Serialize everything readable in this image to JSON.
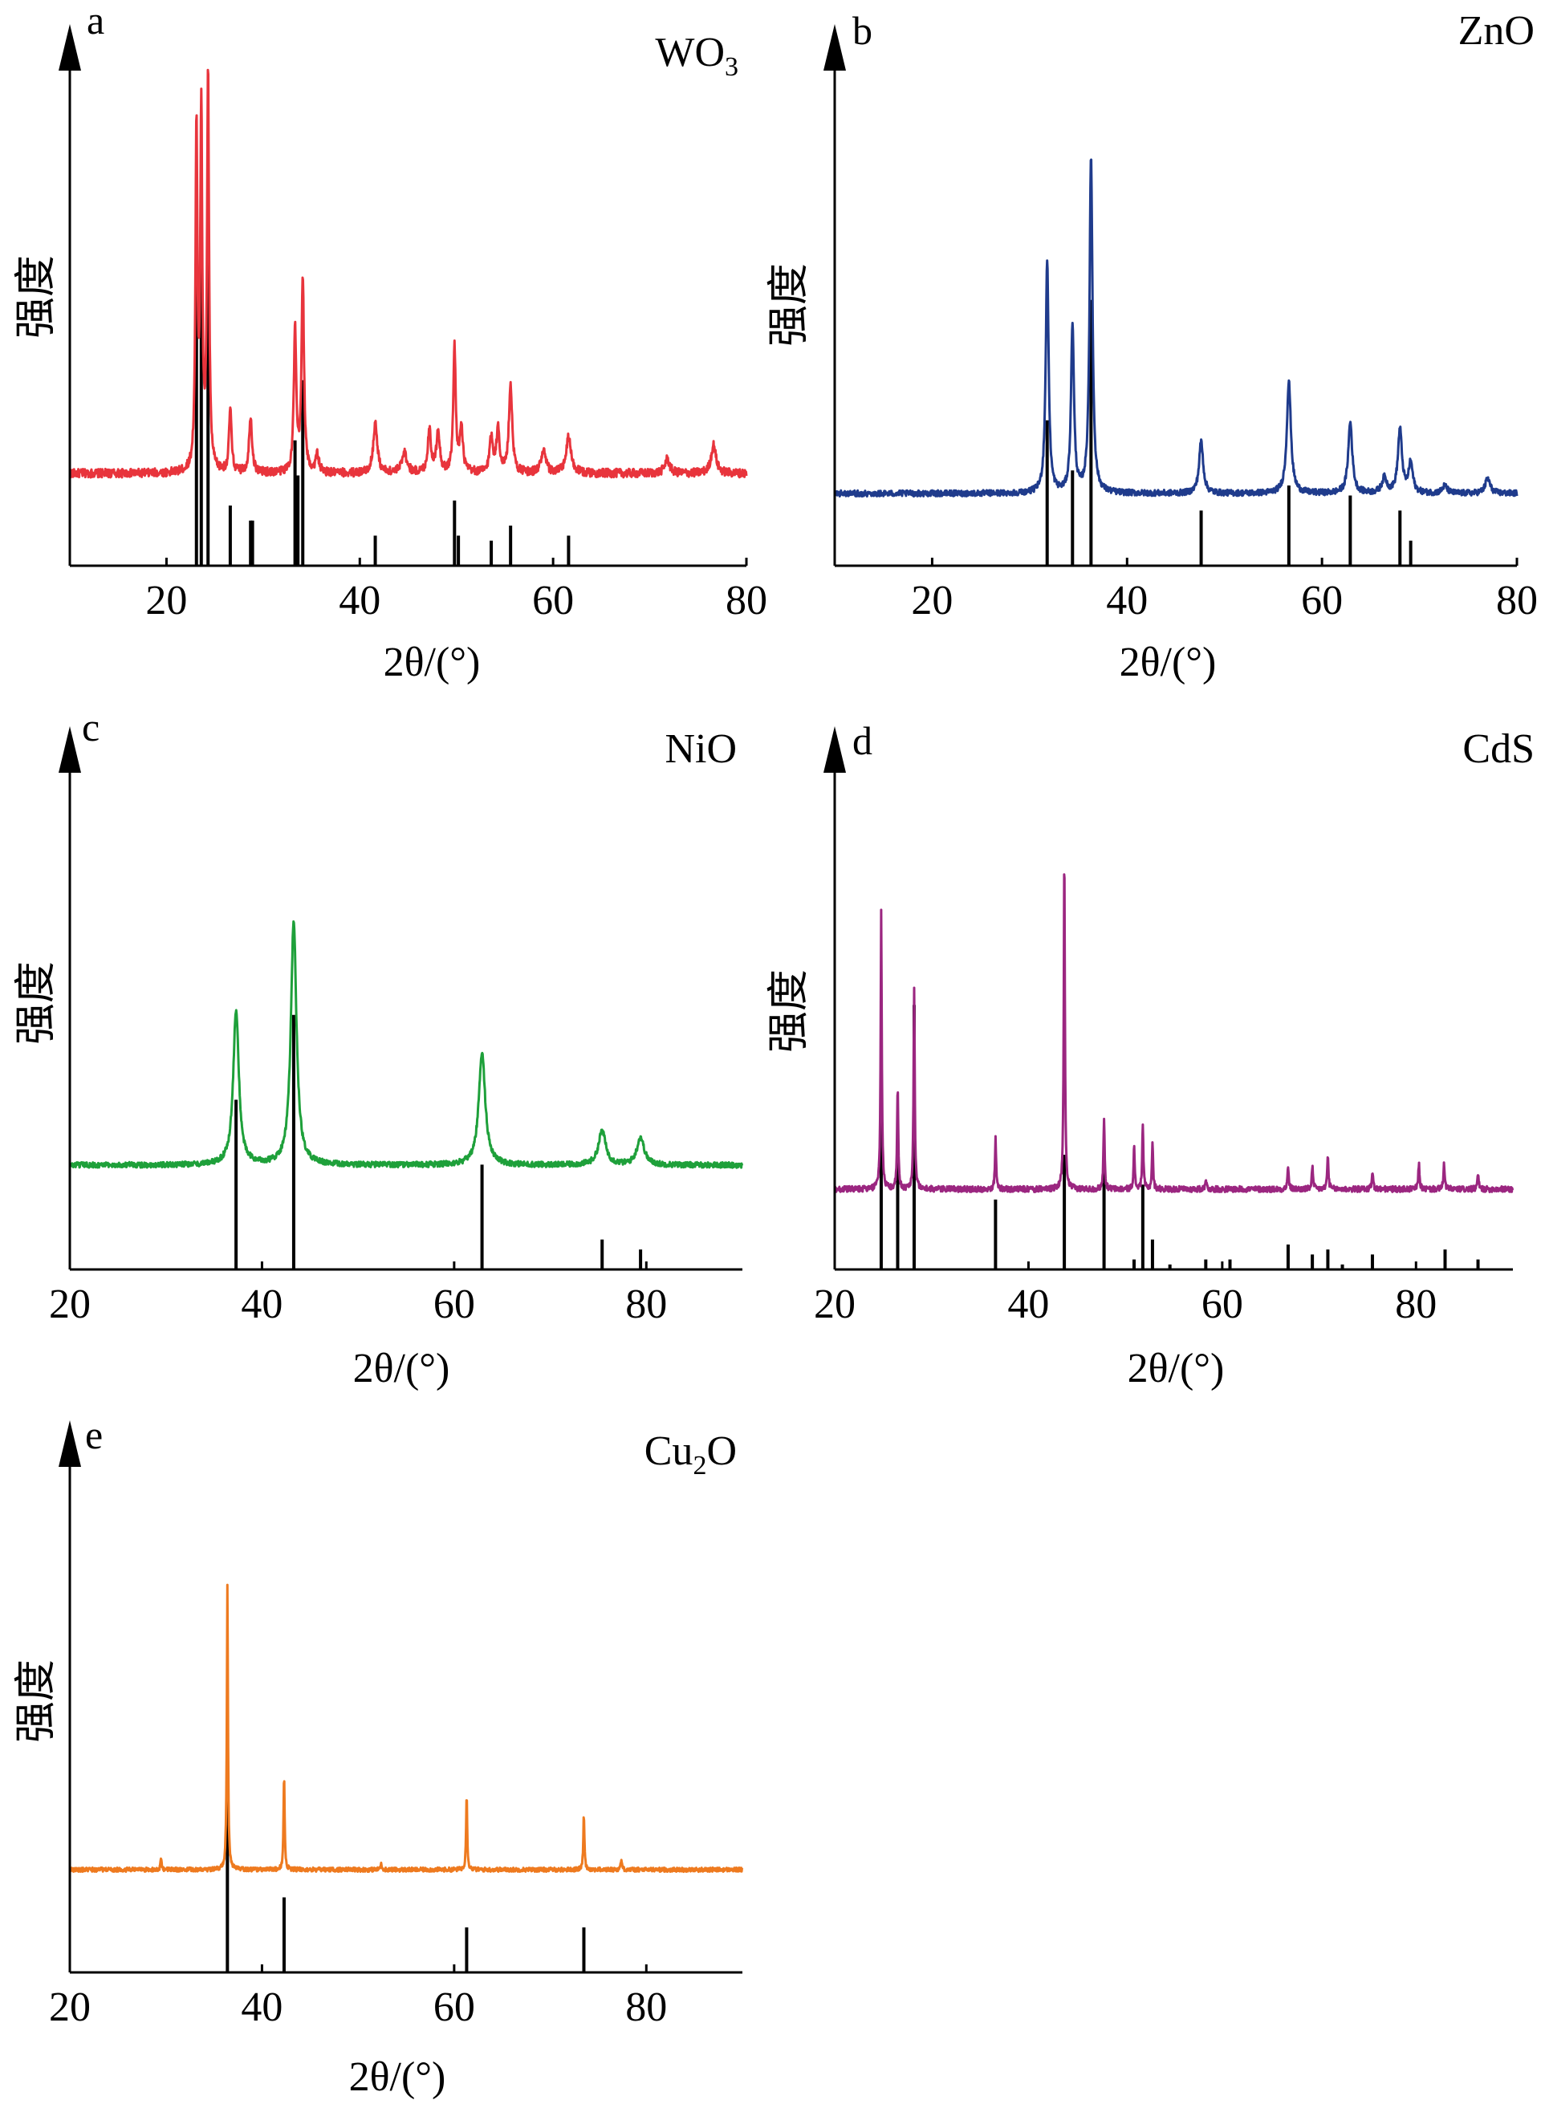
{
  "chart_data": [
    {
      "type": "line",
      "panel": "a",
      "compound": "WO",
      "compound_sub": "3",
      "ylabel": "强度",
      "xlabel": "2θ/(°)",
      "xlim": [
        10,
        80
      ],
      "xticks": [
        20,
        40,
        60,
        80
      ],
      "color": "#e8343c",
      "baseline": 0.2,
      "noise": 0.012,
      "peaks": [
        [
          23.1,
          0.95,
          0.12
        ],
        [
          23.6,
          1.0,
          0.12
        ],
        [
          24.3,
          1.12,
          0.12
        ],
        [
          26.6,
          0.18,
          0.15
        ],
        [
          28.7,
          0.16,
          0.18
        ],
        [
          33.3,
          0.4,
          0.15
        ],
        [
          34.1,
          0.55,
          0.15
        ],
        [
          35.6,
          0.05,
          0.2
        ],
        [
          41.6,
          0.14,
          0.25
        ],
        [
          44.6,
          0.06,
          0.3
        ],
        [
          47.2,
          0.12,
          0.2
        ],
        [
          48.1,
          0.12,
          0.2
        ],
        [
          49.8,
          0.35,
          0.15
        ],
        [
          50.5,
          0.12,
          0.2
        ],
        [
          53.6,
          0.1,
          0.2
        ],
        [
          54.3,
          0.12,
          0.2
        ],
        [
          55.6,
          0.25,
          0.2
        ],
        [
          59.0,
          0.06,
          0.3
        ],
        [
          61.6,
          0.1,
          0.3
        ],
        [
          71.8,
          0.04,
          0.3
        ],
        [
          76.6,
          0.08,
          0.3
        ]
      ],
      "refs": [
        [
          23.1,
          0.62
        ],
        [
          23.6,
          0.6
        ],
        [
          24.3,
          0.65
        ],
        [
          26.6,
          0.12
        ],
        [
          28.7,
          0.09
        ],
        [
          28.9,
          0.09
        ],
        [
          33.3,
          0.25
        ],
        [
          33.6,
          0.18
        ],
        [
          34.1,
          0.37
        ],
        [
          41.6,
          0.06
        ],
        [
          49.8,
          0.13
        ],
        [
          50.2,
          0.06
        ],
        [
          53.6,
          0.05
        ],
        [
          55.6,
          0.08
        ],
        [
          61.6,
          0.06
        ]
      ]
    },
    {
      "type": "line",
      "panel": "b",
      "compound": "ZnO",
      "compound_sub": "",
      "ylabel": "强度",
      "xlabel": "2θ/(°)",
      "xlim": [
        10,
        80
      ],
      "xticks": [
        20,
        40,
        60,
        80
      ],
      "color": "#1f3b8c",
      "baseline": 0.15,
      "noise": 0.008,
      "peaks": [
        [
          31.8,
          0.62,
          0.18
        ],
        [
          34.4,
          0.45,
          0.18
        ],
        [
          36.3,
          0.9,
          0.18
        ],
        [
          47.6,
          0.14,
          0.25
        ],
        [
          56.6,
          0.3,
          0.25
        ],
        [
          62.9,
          0.19,
          0.25
        ],
        [
          66.4,
          0.04,
          0.3
        ],
        [
          68.0,
          0.17,
          0.25
        ],
        [
          69.1,
          0.08,
          0.25
        ],
        [
          72.6,
          0.02,
          0.3
        ],
        [
          77.0,
          0.04,
          0.3
        ]
      ],
      "refs": [
        [
          31.8,
          0.29
        ],
        [
          34.4,
          0.19
        ],
        [
          36.3,
          0.53
        ],
        [
          47.6,
          0.11
        ],
        [
          56.6,
          0.16
        ],
        [
          62.9,
          0.14
        ],
        [
          68.0,
          0.11
        ],
        [
          69.1,
          0.05
        ]
      ]
    },
    {
      "type": "line",
      "panel": "c",
      "compound": "NiO",
      "compound_sub": "",
      "ylabel": "强度",
      "xlabel": "2θ/(°)",
      "xlim": [
        20,
        90
      ],
      "xticks": [
        20,
        40,
        60,
        80
      ],
      "color": "#1ea03a",
      "baseline": 0.2,
      "noise": 0.008,
      "peaks": [
        [
          37.3,
          0.45,
          0.35
        ],
        [
          43.3,
          0.71,
          0.35
        ],
        [
          62.9,
          0.33,
          0.4
        ],
        [
          75.4,
          0.1,
          0.45
        ],
        [
          79.4,
          0.08,
          0.45
        ]
      ],
      "refs": [
        [
          37.3,
          0.34
        ],
        [
          43.3,
          0.51
        ],
        [
          62.9,
          0.21
        ],
        [
          75.4,
          0.06
        ],
        [
          79.4,
          0.04
        ]
      ]
    },
    {
      "type": "line",
      "panel": "d",
      "compound": "CdS",
      "compound_sub": "",
      "ylabel": "强度",
      "xlabel": "2θ/(°)",
      "xlim": [
        20,
        90
      ],
      "xticks": [
        20,
        40,
        60,
        80
      ],
      "color": "#9b2680",
      "baseline": 0.2,
      "noise": 0.008,
      "peaks": [
        [
          24.8,
          0.76,
          0.07
        ],
        [
          26.5,
          0.28,
          0.07
        ],
        [
          28.2,
          0.55,
          0.07
        ],
        [
          36.6,
          0.14,
          0.07
        ],
        [
          43.7,
          0.93,
          0.07
        ],
        [
          47.8,
          0.2,
          0.07
        ],
        [
          50.9,
          0.12,
          0.07
        ],
        [
          51.8,
          0.18,
          0.07
        ],
        [
          52.8,
          0.13,
          0.07
        ],
        [
          58.3,
          0.03,
          0.08
        ],
        [
          66.8,
          0.06,
          0.08
        ],
        [
          69.3,
          0.06,
          0.08
        ],
        [
          70.9,
          0.09,
          0.08
        ],
        [
          75.5,
          0.05,
          0.08
        ],
        [
          80.3,
          0.07,
          0.08
        ],
        [
          82.9,
          0.07,
          0.08
        ],
        [
          86.4,
          0.04,
          0.08
        ]
      ],
      "refs": [
        [
          24.8,
          0.35
        ],
        [
          26.5,
          0.22
        ],
        [
          28.2,
          0.53
        ],
        [
          36.6,
          0.14
        ],
        [
          43.7,
          0.23
        ],
        [
          47.8,
          0.22
        ],
        [
          50.9,
          0.02
        ],
        [
          51.8,
          0.17
        ],
        [
          52.8,
          0.06
        ],
        [
          54.6,
          0.01
        ],
        [
          58.3,
          0.02
        ],
        [
          60.8,
          0.02
        ],
        [
          66.8,
          0.05
        ],
        [
          69.3,
          0.03
        ],
        [
          70.9,
          0.04
        ],
        [
          72.4,
          0.01
        ],
        [
          75.5,
          0.03
        ],
        [
          83.0,
          0.04
        ],
        [
          86.4,
          0.02
        ]
      ]
    },
    {
      "type": "line",
      "panel": "e",
      "compound": "Cu",
      "compound_sub": "2",
      "compound_suffix": "O",
      "ylabel": "强度",
      "xlabel": "2θ/(°)",
      "xlim": [
        20,
        90
      ],
      "xticks": [
        20,
        40,
        60,
        80
      ],
      "color": "#ee7a1f",
      "baseline": 0.18,
      "noise": 0.006,
      "peaks": [
        [
          29.5,
          0.03,
          0.08
        ],
        [
          36.4,
          0.82,
          0.07
        ],
        [
          42.3,
          0.27,
          0.07
        ],
        [
          52.4,
          0.015,
          0.1
        ],
        [
          61.3,
          0.22,
          0.07
        ],
        [
          73.5,
          0.16,
          0.07
        ],
        [
          77.4,
          0.03,
          0.08
        ]
      ],
      "refs": [
        [
          36.4,
          0.45
        ],
        [
          42.3,
          0.15
        ],
        [
          61.3,
          0.09
        ],
        [
          73.5,
          0.09
        ]
      ]
    }
  ]
}
